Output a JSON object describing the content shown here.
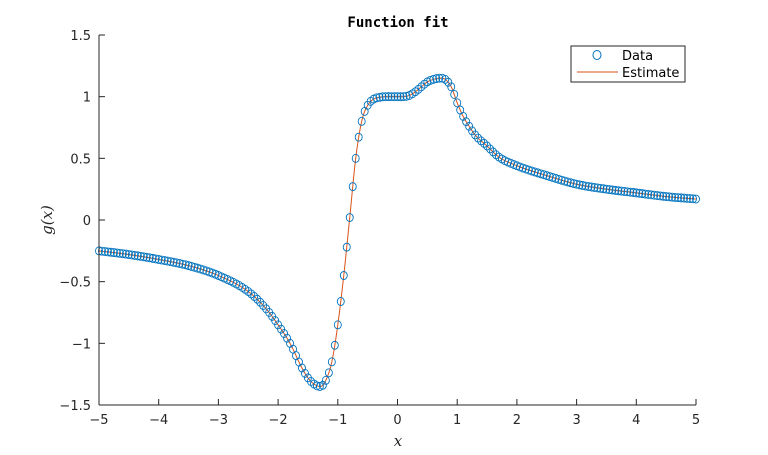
{
  "chart_data": {
    "type": "scatter",
    "title": "Function fit",
    "xlabel": "x",
    "ylabel": "g(x)",
    "xlim": [
      -5,
      5
    ],
    "ylim": [
      -1.5,
      1.5
    ],
    "xticks": [
      -5,
      -4,
      -3,
      -2,
      -1,
      0,
      1,
      2,
      3,
      4,
      5
    ],
    "yticks": [
      -1.5,
      -1,
      -0.5,
      0,
      0.5,
      1,
      1.5
    ],
    "xtick_labels": [
      "−5",
      "−4",
      "−3",
      "−2",
      "−1",
      "0",
      "1",
      "2",
      "3",
      "4",
      "5"
    ],
    "ytick_labels": [
      "−1.5",
      "−1",
      "−0.5",
      "0",
      "0.5",
      "1",
      "1.5"
    ],
    "grid": false,
    "legend_position": "top-right",
    "colors": {
      "data": "#0072BD",
      "estimate": "#D95319"
    },
    "series": [
      {
        "name": "Data",
        "style": "markers",
        "marker": "circle",
        "x": [
          -5,
          -4.5,
          -4,
          -3.5,
          -3,
          -2.5,
          -2.2,
          -2,
          -1.8,
          -1.6,
          -1.5,
          -1.4,
          -1.3,
          -1.25,
          -1.2,
          -1.1,
          -1,
          -0.9,
          -0.8,
          -0.7,
          -0.6,
          -0.5,
          -0.4,
          -0.3,
          -0.2,
          -0.1,
          0,
          0.1,
          0.2,
          0.3,
          0.4,
          0.5,
          0.6,
          0.7,
          0.75,
          0.8,
          0.9,
          1,
          1.1,
          1.2,
          1.3,
          1.5,
          1.7,
          2,
          2.5,
          3,
          3.5,
          4,
          4.5,
          5
        ],
        "y": [
          -0.25,
          -0.28,
          -0.32,
          -0.37,
          -0.45,
          -0.58,
          -0.72,
          -0.85,
          -1.0,
          -1.2,
          -1.28,
          -1.33,
          -1.35,
          -1.34,
          -1.3,
          -1.15,
          -0.85,
          -0.45,
          0.02,
          0.5,
          0.8,
          0.93,
          0.98,
          0.995,
          1.0,
          1.0,
          1.0,
          1.0,
          1.01,
          1.04,
          1.08,
          1.12,
          1.14,
          1.15,
          1.15,
          1.14,
          1.08,
          0.95,
          0.84,
          0.76,
          0.69,
          0.6,
          0.51,
          0.44,
          0.36,
          0.29,
          0.25,
          0.22,
          0.19,
          0.17
        ]
      },
      {
        "name": "Estimate",
        "style": "line"
      }
    ]
  }
}
